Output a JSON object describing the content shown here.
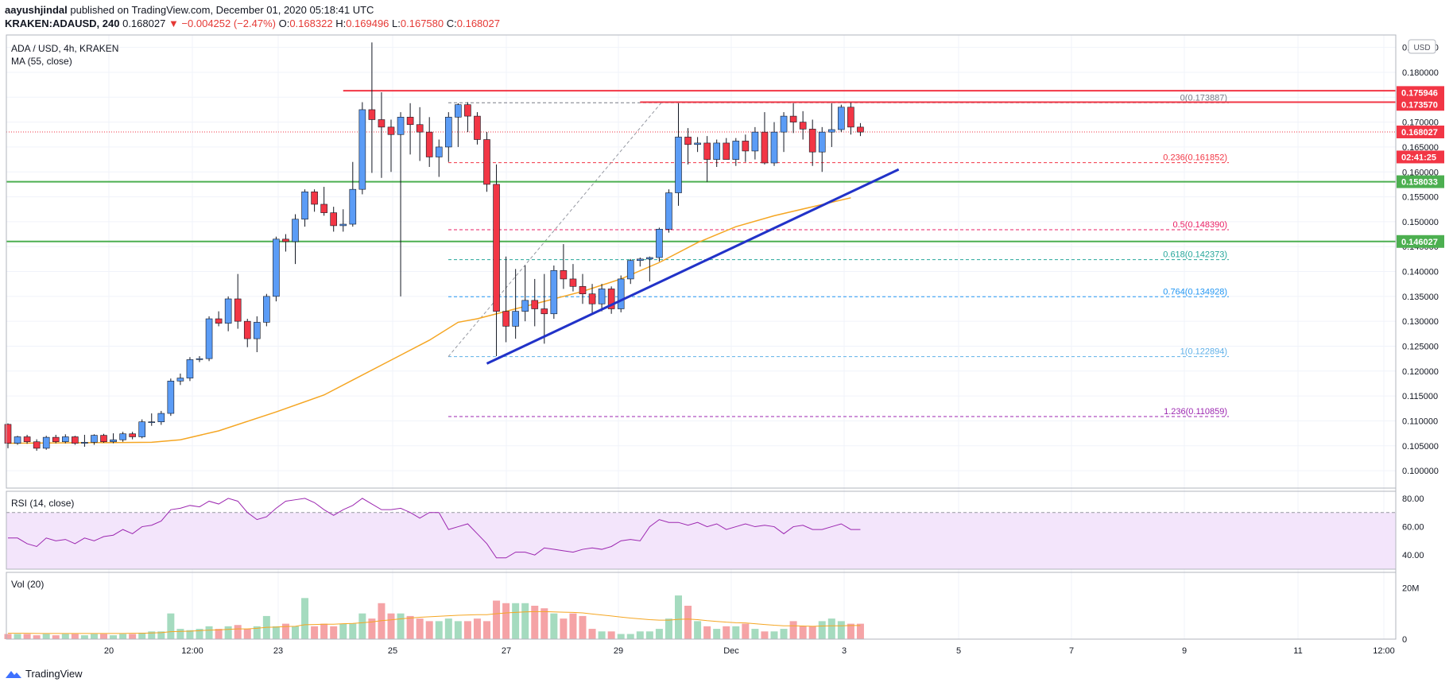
{
  "header": {
    "line1_user": "aayushjindal",
    "line1_rest": " published on TradingView.com, December 01, 2020 05:18:41 UTC",
    "symbol": "KRAKEN:ADAUSD, 240",
    "price": "0.168027",
    "change": "▼ −0.004252 (−2.47%)",
    "o_label": "O:",
    "o": "0.168322",
    "h_label": "H:",
    "h": "0.169496",
    "l_label": "L:",
    "l": "0.167580",
    "c_label": "C:",
    "c": "0.168027"
  },
  "legend": {
    "pair": "ADA / USD, 4h, KRAKEN",
    "ma": "MA (55, close)",
    "rsi": "RSI (14, close)",
    "vol": "Vol (20)"
  },
  "currency_button": "USD",
  "footer": {
    "brand": "TradingView",
    "logo_icon": "tradingview-logo-icon"
  },
  "colors": {
    "bull": "#5b9cf6",
    "bear": "#f23645",
    "ma": "#f5a623",
    "resistance": "#f23645",
    "support": "#4caf50",
    "trendline": "#2132c8",
    "rsi": "#9c27b0",
    "rsi_band": "#f3e5fb",
    "vol_up": "#a5dbbf",
    "vol_down": "#f5a3a6"
  },
  "chart_data": {
    "type": "candlestick",
    "y_ticks": [
      "0.100000",
      "0.105000",
      "0.110000",
      "0.115000",
      "0.120000",
      "0.125000",
      "0.130000",
      "0.135000",
      "0.140000",
      "0.145000",
      "0.150000",
      "0.155000",
      "0.160000",
      "0.165000",
      "0.170000",
      "0.175000",
      "0.180000",
      "0.185000"
    ],
    "x_ticks": [
      "20",
      "12:00",
      "23",
      "25",
      "27",
      "29",
      "Dec",
      "3",
      "5",
      "7",
      "9",
      "11",
      "12:00"
    ],
    "ylim": [
      0.0965,
      0.1875
    ],
    "candles": [
      [
        0.1093,
        0.1095,
        0.1045,
        0.1055
      ],
      [
        0.1055,
        0.107,
        0.1052,
        0.1068
      ],
      [
        0.1068,
        0.1072,
        0.1054,
        0.1058
      ],
      [
        0.1058,
        0.1063,
        0.104,
        0.1045
      ],
      [
        0.1045,
        0.107,
        0.1042,
        0.1067
      ],
      [
        0.1067,
        0.1072,
        0.1055,
        0.1058
      ],
      [
        0.1058,
        0.1073,
        0.1055,
        0.1068
      ],
      [
        0.1068,
        0.107,
        0.1052,
        0.1055
      ],
      [
        0.1055,
        0.1072,
        0.1048,
        0.1057
      ],
      [
        0.1057,
        0.1073,
        0.1052,
        0.1071
      ],
      [
        0.1071,
        0.1074,
        0.1056,
        0.1058
      ],
      [
        0.1058,
        0.1075,
        0.1055,
        0.1062
      ],
      [
        0.1062,
        0.1078,
        0.1058,
        0.1074
      ],
      [
        0.1074,
        0.1078,
        0.1063,
        0.1068
      ],
      [
        0.1068,
        0.1103,
        0.1065,
        0.1098
      ],
      [
        0.1098,
        0.1115,
        0.109,
        0.1098
      ],
      [
        0.1098,
        0.112,
        0.1092,
        0.1115
      ],
      [
        0.1115,
        0.1185,
        0.111,
        0.118
      ],
      [
        0.118,
        0.1195,
        0.1172,
        0.1186
      ],
      [
        0.1186,
        0.1228,
        0.118,
        0.1223
      ],
      [
        0.1223,
        0.123,
        0.1218,
        0.1225
      ],
      [
        0.1225,
        0.131,
        0.122,
        0.1305
      ],
      [
        0.1305,
        0.132,
        0.129,
        0.1296
      ],
      [
        0.1296,
        0.135,
        0.128,
        0.1345
      ],
      [
        0.1345,
        0.1395,
        0.1285,
        0.13
      ],
      [
        0.13,
        0.1305,
        0.1248,
        0.1265
      ],
      [
        0.1265,
        0.131,
        0.1238,
        0.1298
      ],
      [
        0.1298,
        0.1355,
        0.129,
        0.135
      ],
      [
        0.135,
        0.147,
        0.134,
        0.1465
      ],
      [
        0.1465,
        0.1475,
        0.144,
        0.146
      ],
      [
        0.146,
        0.1515,
        0.1415,
        0.1505
      ],
      [
        0.1505,
        0.1565,
        0.149,
        0.156
      ],
      [
        0.156,
        0.1565,
        0.152,
        0.1535
      ],
      [
        0.1535,
        0.157,
        0.1512,
        0.1518
      ],
      [
        0.1518,
        0.153,
        0.148,
        0.1492
      ],
      [
        0.1492,
        0.1525,
        0.148,
        0.1495
      ],
      [
        0.1495,
        0.162,
        0.149,
        0.1565
      ],
      [
        0.1565,
        0.174,
        0.1555,
        0.1725
      ],
      [
        0.1725,
        0.186,
        0.1598,
        0.1705
      ],
      [
        0.1705,
        0.176,
        0.1588,
        0.169
      ],
      [
        0.169,
        0.1705,
        0.16,
        0.1675
      ],
      [
        0.1675,
        0.172,
        0.135,
        0.171
      ],
      [
        0.171,
        0.1738,
        0.1635,
        0.1695
      ],
      [
        0.1695,
        0.173,
        0.1622,
        0.168
      ],
      [
        0.168,
        0.171,
        0.161,
        0.163
      ],
      [
        0.163,
        0.1665,
        0.159,
        0.165
      ],
      [
        0.165,
        0.172,
        0.162,
        0.171
      ],
      [
        0.171,
        0.1738,
        0.165,
        0.1735
      ],
      [
        0.1735,
        0.174,
        0.168,
        0.1712
      ],
      [
        0.1712,
        0.172,
        0.1655,
        0.1665
      ],
      [
        0.1665,
        0.168,
        0.156,
        0.1575
      ],
      [
        0.1575,
        0.1615,
        0.123,
        0.132
      ],
      [
        0.132,
        0.143,
        0.1258,
        0.129
      ],
      [
        0.129,
        0.1405,
        0.1265,
        0.132
      ],
      [
        0.132,
        0.1412,
        0.13,
        0.1342
      ],
      [
        0.1342,
        0.1385,
        0.129,
        0.1325
      ],
      [
        0.1325,
        0.1395,
        0.1255,
        0.1315
      ],
      [
        0.1315,
        0.1412,
        0.1305,
        0.1402
      ],
      [
        0.1402,
        0.1455,
        0.1365,
        0.1385
      ],
      [
        0.1385,
        0.1415,
        0.136,
        0.137
      ],
      [
        0.137,
        0.1395,
        0.1335,
        0.1355
      ],
      [
        0.1355,
        0.1375,
        0.1315,
        0.1335
      ],
      [
        0.1335,
        0.1375,
        0.132,
        0.1365
      ],
      [
        0.1365,
        0.137,
        0.1315,
        0.1325
      ],
      [
        0.1325,
        0.1392,
        0.1318,
        0.1385
      ],
      [
        0.1385,
        0.1425,
        0.1375,
        0.1422
      ],
      [
        0.1422,
        0.1428,
        0.141,
        0.1425
      ],
      [
        0.1425,
        0.143,
        0.138,
        0.1428
      ],
      [
        0.1428,
        0.1488,
        0.142,
        0.1485
      ],
      [
        0.1485,
        0.1565,
        0.1478,
        0.1558
      ],
      [
        0.1558,
        0.1738,
        0.1532,
        0.167
      ],
      [
        0.167,
        0.1688,
        0.1615,
        0.1655
      ],
      [
        0.1655,
        0.167,
        0.164,
        0.1658
      ],
      [
        0.1658,
        0.1672,
        0.158,
        0.1625
      ],
      [
        0.1625,
        0.1665,
        0.161,
        0.1658
      ],
      [
        0.1658,
        0.1668,
        0.1625,
        0.1625
      ],
      [
        0.1625,
        0.1668,
        0.1612,
        0.1662
      ],
      [
        0.1662,
        0.1675,
        0.162,
        0.1642
      ],
      [
        0.1642,
        0.169,
        0.1625,
        0.168
      ],
      [
        0.168,
        0.172,
        0.1615,
        0.1618
      ],
      [
        0.1618,
        0.17,
        0.1612,
        0.168
      ],
      [
        0.168,
        0.172,
        0.164,
        0.1712
      ],
      [
        0.1712,
        0.1738,
        0.1678,
        0.17
      ],
      [
        0.17,
        0.1722,
        0.1665,
        0.1686
      ],
      [
        0.1686,
        0.1705,
        0.1612,
        0.164
      ],
      [
        0.164,
        0.169,
        0.16,
        0.168
      ],
      [
        0.168,
        0.1738,
        0.165,
        0.1685
      ],
      [
        0.1685,
        0.1735,
        0.168,
        0.173
      ],
      [
        0.173,
        0.1739,
        0.1675,
        0.169
      ],
      [
        0.169,
        0.1698,
        0.1672,
        0.168
      ]
    ],
    "ma55": [
      [
        0,
        0.1055
      ],
      [
        15,
        0.1057
      ],
      [
        18,
        0.1062
      ],
      [
        22,
        0.108
      ],
      [
        28,
        0.1118
      ],
      [
        33,
        0.1152
      ],
      [
        36,
        0.1182
      ],
      [
        40,
        0.1222
      ],
      [
        44,
        0.1262
      ],
      [
        47,
        0.1298
      ],
      [
        49,
        0.1305
      ],
      [
        52,
        0.132
      ],
      [
        56,
        0.134
      ],
      [
        60,
        0.136
      ],
      [
        64,
        0.1385
      ],
      [
        68,
        0.1418
      ],
      [
        72,
        0.1458
      ],
      [
        76,
        0.149
      ],
      [
        80,
        0.1512
      ],
      [
        84,
        0.153
      ],
      [
        88,
        0.1548
      ]
    ],
    "rsi": [
      52,
      52,
      48,
      46,
      52,
      50,
      51,
      48,
      52,
      50,
      53,
      54,
      58,
      55,
      60,
      61,
      64,
      72,
      73,
      75,
      74,
      78,
      76,
      80,
      78,
      70,
      65,
      67,
      73,
      78,
      79,
      80,
      77,
      72,
      68,
      72,
      75,
      80,
      76,
      72,
      72,
      73,
      70,
      66,
      70,
      70,
      58,
      60,
      62,
      55,
      48,
      38,
      38,
      42,
      42,
      40,
      45,
      44,
      43,
      42,
      44,
      45,
      44,
      46,
      50,
      51,
      50,
      60,
      65,
      63,
      63,
      61,
      63,
      60,
      62,
      58,
      60,
      62,
      60,
      61,
      60,
      55,
      60,
      61,
      58,
      58,
      60,
      62,
      58,
      58
    ],
    "rsi_ylim": [
      30,
      85
    ],
    "rsi_ticks": [
      "80.00",
      "60.00",
      "40.00"
    ],
    "rsi_levels": [
      70,
      30
    ],
    "volume": [
      2,
      2,
      2,
      1.5,
      2,
      1.5,
      2,
      2,
      1.5,
      2,
      2,
      1.5,
      2,
      2,
      2.5,
      3,
      3,
      10,
      4,
      3.5,
      4,
      5,
      4,
      5,
      5.5,
      4,
      5,
      9,
      5,
      6,
      5,
      16,
      5,
      6,
      5,
      6,
      6,
      10,
      8,
      14,
      10,
      10,
      9,
      8,
      7,
      7,
      8,
      7,
      7,
      8,
      7,
      15,
      14,
      14,
      14,
      13,
      12,
      10,
      8,
      10,
      9,
      4,
      3,
      3,
      2,
      2,
      3,
      3,
      4,
      8,
      17,
      13,
      7,
      5,
      4,
      5,
      5,
      6,
      4,
      3,
      3,
      4,
      7,
      5,
      5,
      7,
      8,
      7,
      6,
      6
    ],
    "vol_ma": [
      2.3,
      2.3,
      2.3,
      2.2,
      2.2,
      2.2,
      2.2,
      2.2,
      2.2,
      2.2,
      2.2,
      2.2,
      2.2,
      2.3,
      2.3,
      2.4,
      2.5,
      2.9,
      3.0,
      3.1,
      3.3,
      3.5,
      3.6,
      3.8,
      4.0,
      4.0,
      4.2,
      4.6,
      4.7,
      4.9,
      5.0,
      5.6,
      5.7,
      5.8,
      5.8,
      6.0,
      6.1,
      6.4,
      6.7,
      7.2,
      7.5,
      7.9,
      8.2,
      8.5,
      8.7,
      8.9,
      9.1,
      9.3,
      9.4,
      9.5,
      9.5,
      9.9,
      10.2,
      10.4,
      10.6,
      10.7,
      10.7,
      10.6,
      10.5,
      10.4,
      10.2,
      9.8,
      9.4,
      9.0,
      8.6,
      8.2,
      7.9,
      7.6,
      7.4,
      7.4,
      7.7,
      7.8,
      7.6,
      7.2,
      6.9,
      6.6,
      6.4,
      6.3,
      6.0,
      5.7,
      5.4,
      5.2,
      5.2,
      5.1,
      5.0,
      5.1,
      5.2,
      5.2,
      5.3,
      5.3
    ],
    "vol_ticks": [
      "20M",
      "0"
    ],
    "vol_ylim": [
      0,
      26
    ],
    "fibs": [
      {
        "label": "0(0.173887)",
        "value": 0.173887,
        "color": "#787b86"
      },
      {
        "label": "0.236(0.161852)",
        "value": 0.161852,
        "color": "#f23645"
      },
      {
        "label": "0.5(0.148390)",
        "value": 0.14839,
        "color": "#e91e63"
      },
      {
        "label": "0.618(0.142373)",
        "value": 0.142373,
        "color": "#26a69a"
      },
      {
        "label": "0.764(0.134928)",
        "value": 0.134928,
        "color": "#2196f3"
      },
      {
        "label": "1(0.122894)",
        "value": 0.122894,
        "color": "#5fb0e8"
      },
      {
        "label": "1.236(0.110859)",
        "value": 0.110859,
        "color": "#9c27b0"
      }
    ],
    "horizontal_lines": [
      {
        "kind": "resistance",
        "value": 0.1763,
        "x_from": 35
      },
      {
        "kind": "resistance",
        "value": 0.174,
        "x_from": 66
      },
      {
        "kind": "support",
        "value": 0.15803
      },
      {
        "kind": "support",
        "value": 0.14603
      }
    ],
    "trendline": [
      [
        50,
        0.1215
      ],
      [
        93,
        0.1605
      ]
    ],
    "price_labels": [
      {
        "text": "0.175946",
        "value": 0.175946,
        "color": "#f23645"
      },
      {
        "text": "0.173570",
        "value": 0.17357,
        "color": "#f23645"
      },
      {
        "text": "0.168027",
        "value": 0.168027,
        "color": "#f23645"
      },
      {
        "text": "02:41:25",
        "value": 0.163,
        "color": "#f23645"
      },
      {
        "text": "0.158033",
        "value": 0.158033,
        "color": "#4caf50"
      },
      {
        "text": "0.146027",
        "value": 0.146027,
        "color": "#4caf50"
      }
    ],
    "last_price": 0.168027
  }
}
